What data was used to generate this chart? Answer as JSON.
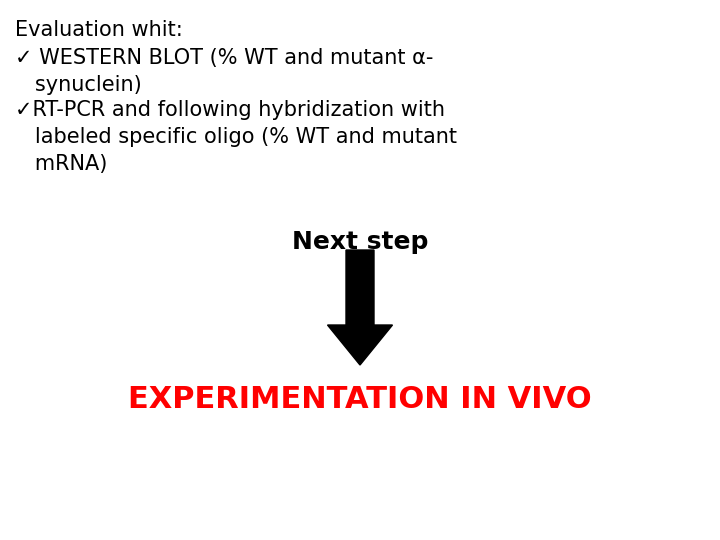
{
  "background_color": "#ffffff",
  "line1": "Evaluation whit:",
  "line2": "✓ WESTERN BLOT (% WT and mutant α-",
  "line3": "   synuclein)",
  "line4": "✓RT-PCR and following hybridization with",
  "line5": "   labeled specific oligo (% WT and mutant",
  "line6": "   mRNA)",
  "next_step": "Next step",
  "bottom_text": "EXPERIMENTATION IN VIVO",
  "text_color": "#000000",
  "red_color": "#ff0000",
  "font_size_main": 15,
  "font_size_next": 18,
  "font_size_bottom": 22
}
